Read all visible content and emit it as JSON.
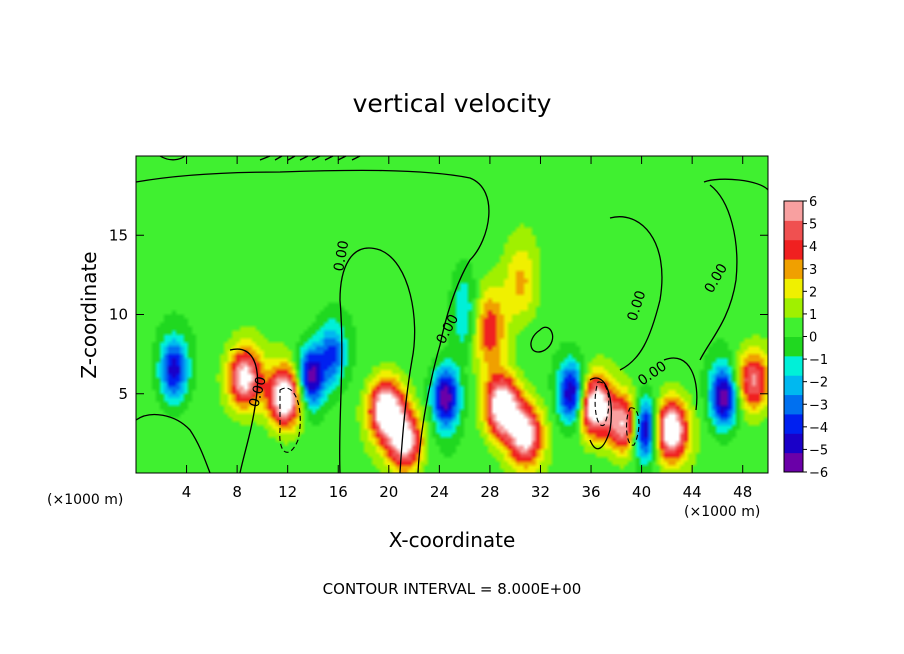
{
  "chart_data": {
    "type": "heatmap",
    "title": "vertical velocity",
    "xlabel": "X-coordinate",
    "ylabel": "Z-coordinate",
    "x_unit_left": "(×1000 m)",
    "x_unit_right": "(×1000 m)",
    "xlim": [
      0,
      50
    ],
    "ylim": [
      0,
      20
    ],
    "x_ticks": [
      4,
      8,
      12,
      16,
      20,
      24,
      28,
      32,
      36,
      40,
      44,
      48
    ],
    "y_ticks": [
      5,
      10,
      15
    ],
    "colorbar": {
      "min": -6,
      "max": 6,
      "ticks": [
        6,
        5,
        4,
        3,
        2,
        1,
        0,
        -1,
        -2,
        -3,
        -4,
        -5,
        -6
      ],
      "tick_labels": [
        "6",
        "5",
        "4",
        "3",
        "2",
        "1",
        "0",
        "−1",
        "−2",
        "−3",
        "−4",
        "−5",
        "−6"
      ],
      "colors": [
        "#6a00a8",
        "#1a00c8",
        "#0020f0",
        "#0070f0",
        "#00b8f0",
        "#00f0d8",
        "#20d820",
        "#40f030",
        "#a0f000",
        "#f0f000",
        "#f0a000",
        "#f02020",
        "#f05050",
        "#f8a0a0"
      ]
    },
    "contour_label": "0.00",
    "contour_interval_text": "CONTOUR INTERVAL = 8.000E+00",
    "features": [
      {
        "kind": "updraft",
        "x": 8.6,
        "z": 6.0,
        "value": 5
      },
      {
        "kind": "updraft",
        "x": 11.8,
        "z": 4.8,
        "value": 6
      },
      {
        "kind": "updraft",
        "x": 19.8,
        "z": 4.0,
        "value": 6
      },
      {
        "kind": "updraft",
        "x": 21.3,
        "z": 2.0,
        "value": 5
      },
      {
        "kind": "updraft",
        "x": 29.0,
        "z": 4.2,
        "value": 6
      },
      {
        "kind": "updraft",
        "x": 30.8,
        "z": 2.4,
        "value": 5
      },
      {
        "kind": "updraft",
        "x": 36.3,
        "z": 4.2,
        "value": 6
      },
      {
        "kind": "updraft",
        "x": 38.8,
        "z": 3.0,
        "value": 5
      },
      {
        "kind": "updraft",
        "x": 42.3,
        "z": 2.7,
        "value": 6
      },
      {
        "kind": "updraft",
        "x": 48.8,
        "z": 5.8,
        "value": 4
      },
      {
        "kind": "updraft",
        "x": 28.0,
        "z": 9.0,
        "value": 3
      },
      {
        "kind": "updraft",
        "x": 30.5,
        "z": 12.0,
        "value": 2
      },
      {
        "kind": "downdraft",
        "x": 3.0,
        "z": 6.5,
        "value": -4
      },
      {
        "kind": "downdraft",
        "x": 13.8,
        "z": 6.0,
        "value": -5
      },
      {
        "kind": "downdraft",
        "x": 15.5,
        "z": 7.5,
        "value": -3
      },
      {
        "kind": "downdraft",
        "x": 24.5,
        "z": 4.8,
        "value": -5
      },
      {
        "kind": "downdraft",
        "x": 34.5,
        "z": 5.0,
        "value": -5
      },
      {
        "kind": "downdraft",
        "x": 40.2,
        "z": 2.8,
        "value": -6
      },
      {
        "kind": "downdraft",
        "x": 46.5,
        "z": 4.8,
        "value": -5
      },
      {
        "kind": "downdraft",
        "x": 26.0,
        "z": 10.0,
        "value": -2
      }
    ]
  }
}
